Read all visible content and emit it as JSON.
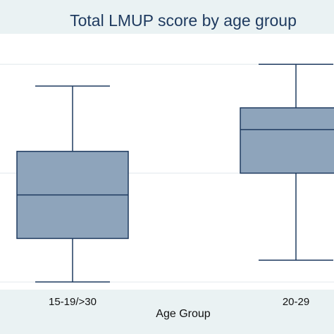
{
  "chart_data": {
    "type": "box",
    "title": "Total LMUP score by age group",
    "xlabel": "Age Group",
    "ylabel": "",
    "categories": [
      "15-19/>30",
      "20-29"
    ],
    "boxes": [
      {
        "category": "15-19/>30",
        "whisker_low": 3,
        "q1": 5,
        "median": 7,
        "q3": 9,
        "whisker_high": 12
      },
      {
        "category": "20-29",
        "whisker_low": 4,
        "q1": 8,
        "median": 10,
        "q3": 11,
        "whisker_high": 13
      }
    ],
    "ylim": [
      2.65,
      14.4
    ],
    "gridlines": [
      3,
      8,
      13
    ],
    "grid": true,
    "colors": {
      "box_fill": "#8ea4bb",
      "box_stroke": "#1e3a5f",
      "grid": "#e6ecef",
      "background": "#eaf2f3",
      "plot_background": "#ffffff",
      "title": "#1e3a5f"
    }
  }
}
